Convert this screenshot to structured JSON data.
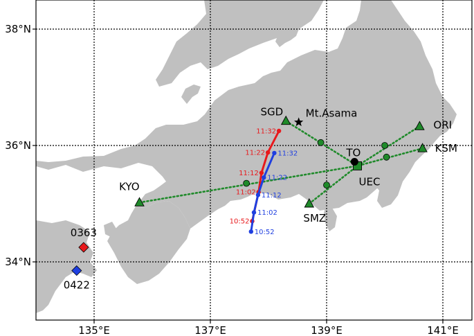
{
  "map": {
    "lon_range": [
      134.0,
      141.5
    ],
    "lat_range": [
      33.0,
      38.5
    ],
    "grid": {
      "lon_lines": [
        135,
        137,
        139,
        141
      ],
      "lat_lines": [
        34,
        36,
        38
      ],
      "lon_labels": [
        "135°E",
        "137°E",
        "139°E",
        "141°E"
      ],
      "lat_labels": [
        "34°N",
        "36°N",
        "38°N"
      ]
    },
    "colors": {
      "land": "#c0c0c0",
      "sea": "#ffffff",
      "grid": "#000000",
      "path_red": "#e8191c",
      "path_blue": "#1f3fe0",
      "station": "#1f8a2a",
      "dotted_link": "#1f8a2a"
    }
  },
  "stations": [
    {
      "name": "SGD",
      "lon": 138.3,
      "lat": 36.42
    },
    {
      "name": "ORI",
      "lon": 140.6,
      "lat": 36.33
    },
    {
      "name": "KSM",
      "lon": 140.65,
      "lat": 35.95
    },
    {
      "name": "KYO",
      "lon": 135.78,
      "lat": 35.02
    },
    {
      "name": "SMZ",
      "lon": 138.7,
      "lat": 35.0
    }
  ],
  "receiver": {
    "name": "UEC",
    "lon": 139.53,
    "lat": 35.65
  },
  "midpoints": [
    {
      "lon": 138.9,
      "lat": 36.05
    },
    {
      "lon": 140.0,
      "lat": 36.0
    },
    {
      "lon": 140.03,
      "lat": 35.8
    },
    {
      "lon": 137.62,
      "lat": 35.35
    },
    {
      "lon": 139.0,
      "lat": 35.32
    }
  ],
  "features": {
    "volcano": {
      "name": "Mt.Asama",
      "lon": 138.52,
      "lat": 36.4
    },
    "city": {
      "name": "TO",
      "lon": 139.48,
      "lat": 35.72
    }
  },
  "events": [
    {
      "id": "0363",
      "lon": 134.82,
      "lat": 34.25,
      "color": "red"
    },
    {
      "id": "0422",
      "lon": 134.7,
      "lat": 33.85,
      "color": "blue"
    }
  ],
  "paths": {
    "red": [
      {
        "time": "10:52",
        "lon": 137.72,
        "lat": 34.7
      },
      {
        "time": "11:02",
        "lon": 137.83,
        "lat": 35.2
      },
      {
        "time": "11:12",
        "lon": 137.88,
        "lat": 35.53
      },
      {
        "time": "11:22",
        "lon": 137.99,
        "lat": 35.88
      },
      {
        "time": "11:32",
        "lon": 138.18,
        "lat": 36.25
      }
    ],
    "blue": [
      {
        "time": "10:52",
        "lon": 137.7,
        "lat": 34.52
      },
      {
        "time": "11:02",
        "lon": 137.75,
        "lat": 34.85
      },
      {
        "time": "11:12",
        "lon": 137.82,
        "lat": 35.15
      },
      {
        "time": "11:22",
        "lon": 137.92,
        "lat": 35.45
      },
      {
        "time": "11:32",
        "lon": 138.1,
        "lat": 35.87
      }
    ]
  }
}
